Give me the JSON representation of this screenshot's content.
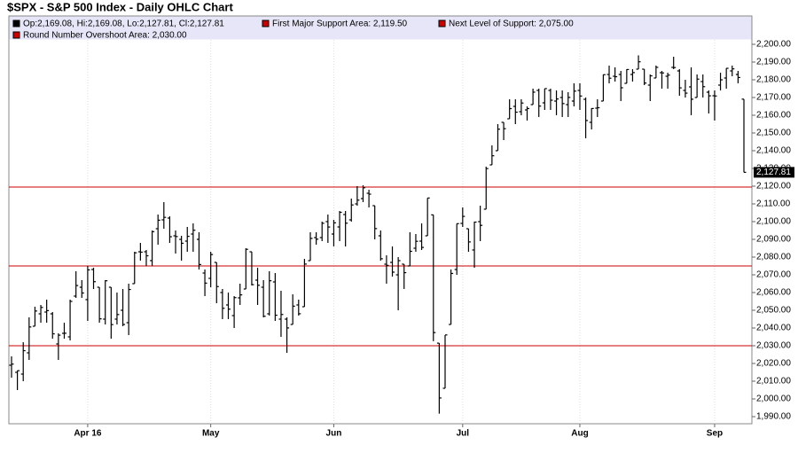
{
  "chart_data": {
    "type": "ohlc",
    "title": "$SPX - S&P 500 Index - Daily OHLC Chart",
    "ohlc_label": "Op:2,169.08, Hi:2,169.08, Lo:2,127.81, Cl:2,127.81",
    "color": "#000000",
    "categories": [
      null,
      null,
      null,
      null,
      null,
      null,
      null,
      null,
      null,
      null,
      null,
      null,
      null,
      "Apr 16",
      null,
      null,
      null,
      null,
      null,
      null,
      null,
      null,
      null,
      null,
      null,
      null,
      null,
      null,
      null,
      null,
      null,
      null,
      null,
      null,
      "May",
      null,
      null,
      null,
      null,
      null,
      null,
      null,
      null,
      null,
      null,
      null,
      null,
      null,
      null,
      null,
      null,
      null,
      null,
      null,
      null,
      "Jun",
      null,
      null,
      null,
      null,
      null,
      null,
      null,
      null,
      null,
      null,
      null,
      null,
      null,
      null,
      null,
      null,
      null,
      null,
      null,
      null,
      null,
      "Jul",
      null,
      null,
      null,
      null,
      null,
      null,
      null,
      null,
      null,
      null,
      null,
      null,
      null,
      null,
      null,
      null,
      null,
      null,
      null,
      "Aug",
      null,
      null,
      null,
      null,
      null,
      null,
      null,
      null,
      null,
      null,
      null,
      null,
      null,
      null,
      null,
      null,
      null,
      null,
      null,
      null,
      null,
      null,
      "Sep",
      null,
      null,
      null,
      null,
      null
    ],
    "open": [
      2019,
      2015,
      2014,
      2026,
      2041,
      2048,
      2049,
      2048,
      2031,
      2037,
      2035,
      2058,
      2063,
      2056,
      2073,
      2063,
      2045,
      2063,
      2045,
      2050,
      2043,
      2065,
      2083,
      2083,
      2078,
      2096,
      2101,
      2102,
      2092,
      2090,
      2089,
      2093,
      2090,
      2071,
      2068,
      2077,
      2060,
      2053,
      2047,
      2057,
      2062,
      2083,
      2067,
      2063,
      2048,
      2066,
      2045,
      2045,
      2042,
      2053,
      2052,
      2078,
      2091,
      2091,
      2100,
      2093,
      2097,
      2104,
      2101,
      2110,
      2113,
      2116,
      2109,
      2092,
      2076,
      2077,
      2070,
      2076,
      2075,
      2085,
      2089,
      2092,
      2103.81,
      2031.45,
      2006,
      2042,
      2073,
      2099,
      2096,
      2084,
      2100,
      2107,
      2132,
      2140,
      2156,
      2158,
      2165,
      2162,
      2163,
      2166,
      2174,
      2167,
      2174,
      2168,
      2170,
      2166,
      2168,
      2174,
      2169,
      2156,
      2164,
      2168,
      2183,
      2182,
      2183,
      2178,
      2183,
      2186,
      2186,
      2177,
      2181,
      2184,
      2182,
      2187,
      2185,
      2174,
      2176,
      2170,
      2179,
      2173,
      2171,
      2177,
      2181,
      2185,
      2183,
      2169.08
    ],
    "high": [
      2024,
      2016,
      2032,
      2046,
      2052,
      2053,
      2056,
      2049,
      2037,
      2043,
      2056,
      2072,
      2067,
      2075,
      2074,
      2063,
      2067,
      2063,
      2060,
      2062,
      2065,
      2083,
      2088,
      2084,
      2095,
      2104,
      2111,
      2103,
      2095,
      2092,
      2097,
      2099,
      2094,
      2073,
      2083,
      2077,
      2062,
      2060,
      2058,
      2065,
      2085,
      2083,
      2074,
      2067,
      2072,
      2071,
      2061,
      2046,
      2059,
      2056,
      2079,
      2094,
      2094,
      2100,
      2104,
      2101,
      2106,
      2106,
      2113,
      2120,
      2120.5,
      2118,
      2109,
      2095,
      2081,
      2086,
      2080,
      2076,
      2094,
      2093,
      2099,
      2113.3,
      2103.81,
      2031.45,
      2036,
      2073,
      2098.9,
      2108,
      2096,
      2100,
      2109,
      2131,
      2143,
      2155,
      2156,
      2169,
      2169,
      2169,
      2165,
      2175,
      2175,
      2175,
      2175,
      2174,
      2174,
      2173,
      2178,
      2178,
      2170,
      2164,
      2169,
      2183,
      2188,
      2187,
      2185,
      2186,
      2186,
      2193.8,
      2186,
      2183,
      2188,
      2185,
      2184,
      2193,
      2186,
      2180,
      2187,
      2183,
      2183,
      2174,
      2174,
      2184,
      2186.6,
      2188,
      2185,
      2169.08
    ],
    "low": [
      2012,
      2005,
      2010,
      2022,
      2041,
      2043,
      2043,
      2034,
      2022,
      2034,
      2033,
      2057,
      2057,
      2044,
      2062,
      2043,
      2042,
      2034,
      2042,
      2041,
      2036,
      2065,
      2078,
      2075,
      2075,
      2087,
      2096,
      2088,
      2082,
      2078,
      2083,
      2083,
      2073,
      2058,
      2063,
      2054,
      2045,
      2045,
      2040,
      2053,
      2062,
      2064,
      2053,
      2046,
      2047,
      2044,
      2035,
      2026,
      2042,
      2047,
      2052,
      2078,
      2087,
      2089,
      2088,
      2086,
      2089,
      2086,
      2100,
      2109,
      2111,
      2108,
      2090,
      2078,
      2065,
      2069,
      2050,
      2062,
      2075,
      2083,
      2084,
      2092,
      2032.57,
      1991.68,
      2006,
      2042,
      2070,
      2097,
      2083,
      2074,
      2089,
      2107,
      2132,
      2140,
      2146,
      2158,
      2155,
      2160,
      2157,
      2166,
      2159,
      2163,
      2163,
      2160,
      2159,
      2159,
      2165,
      2163,
      2147,
      2152,
      2159,
      2168,
      2178,
      2179,
      2168,
      2178,
      2179,
      2186,
      2177,
      2168,
      2181,
      2175,
      2175,
      2186,
      2171,
      2170,
      2160,
      2170,
      2170,
      2161,
      2157,
      2174,
      2175,
      2182,
      2178,
      2127.81
    ],
    "close": [
      2019.64,
      2015.93,
      2027.22,
      2040.59,
      2049.58,
      2051.6,
      2049.8,
      2036.71,
      2035.94,
      2037.05,
      2055.01,
      2063.95,
      2059.74,
      2072.78,
      2066.13,
      2045.17,
      2066.66,
      2041.91,
      2047.6,
      2041.99,
      2061.72,
      2082.42,
      2082.78,
      2080.73,
      2094.34,
      2100.8,
      2102.4,
      2091.48,
      2091.58,
      2087.79,
      2091.7,
      2095.15,
      2075.81,
      2065.3,
      2081.43,
      2063.37,
      2051.12,
      2050.63,
      2057.14,
      2058.69,
      2084.39,
      2064.46,
      2064.11,
      2046.61,
      2066.66,
      2047.21,
      2047.63,
      2040.04,
      2052.32,
      2048.04,
      2076.06,
      2090.54,
      2090.1,
      2099.06,
      2096.95,
      2099.33,
      2105.26,
      2099.13,
      2109.41,
      2112.13,
      2119.12,
      2115.48,
      2096.07,
      2079.06,
      2075.32,
      2071.5,
      2077.99,
      2071.22,
      2083.25,
      2088.9,
      2085.45,
      2113.32,
      2037.41,
      2000.54,
      2036.09,
      2070.77,
      2098.86,
      2102.95,
      2088.55,
      2099.73,
      2097.9,
      2129.9,
      2137.16,
      2152.14,
      2152.43,
      2163.75,
      2161.74,
      2166.89,
      2163.78,
      2173.02,
      2165.17,
      2175.03,
      2168.48,
      2169.18,
      2166.58,
      2170.06,
      2173.6,
      2170.84,
      2157.03,
      2163.79,
      2164.25,
      2182.87,
      2180.89,
      2181.74,
      2175.49,
      2185.79,
      2184.05,
      2190.15,
      2178.15,
      2182.22,
      2187.02,
      2183.87,
      2182.64,
      2186.9,
      2175.44,
      2172.47,
      2169.04,
      2180.38,
      2176.12,
      2170.95,
      2170.86,
      2179.98,
      2186.48,
      2186.16,
      2181.3,
      2127.81
    ],
    "hlines": [
      {
        "label": "First Major Support Area: 2,119.50",
        "value": 2119.5,
        "color": "#cc0000"
      },
      {
        "label": "Next Level of Support: 2,075.00",
        "value": 2075,
        "color": "#cc0000"
      },
      {
        "label": "Round Number Overshoot Area: 2,030.00",
        "value": 2030,
        "color": "#cc0000"
      }
    ],
    "last_label": {
      "value": 2127.81,
      "label": "2,127.81"
    },
    "ylim": [
      1986,
      2216
    ],
    "yticks": [
      {
        "value": 1990,
        "label": "1,990.00"
      },
      {
        "value": 2000,
        "label": "2,000.00"
      },
      {
        "value": 2010,
        "label": "2,010.00"
      },
      {
        "value": 2020,
        "label": "2,020.00"
      },
      {
        "value": 2030,
        "label": "2,030.00"
      },
      {
        "value": 2040,
        "label": "2,040.00"
      },
      {
        "value": 2050,
        "label": "2,050.00"
      },
      {
        "value": 2060,
        "label": "2,060.00"
      },
      {
        "value": 2070,
        "label": "2,070.00"
      },
      {
        "value": 2080,
        "label": "2,080.00"
      },
      {
        "value": 2090,
        "label": "2,090.00"
      },
      {
        "value": 2100,
        "label": "2,100.00"
      },
      {
        "value": 2110,
        "label": "2,110.00"
      },
      {
        "value": 2120,
        "label": "2,120.00"
      },
      {
        "value": 2130,
        "label": "2,130.00"
      },
      {
        "value": 2140,
        "label": "2,140.00"
      },
      {
        "value": 2150,
        "label": "2,150.00"
      },
      {
        "value": 2160,
        "label": "2,160.00"
      },
      {
        "value": 2170,
        "label": "2,170.00"
      },
      {
        "value": 2180,
        "label": "2,180.00"
      },
      {
        "value": 2190,
        "label": "2,190.00"
      },
      {
        "value": 2200,
        "label": "2,200.00"
      }
    ],
    "grid": true
  }
}
